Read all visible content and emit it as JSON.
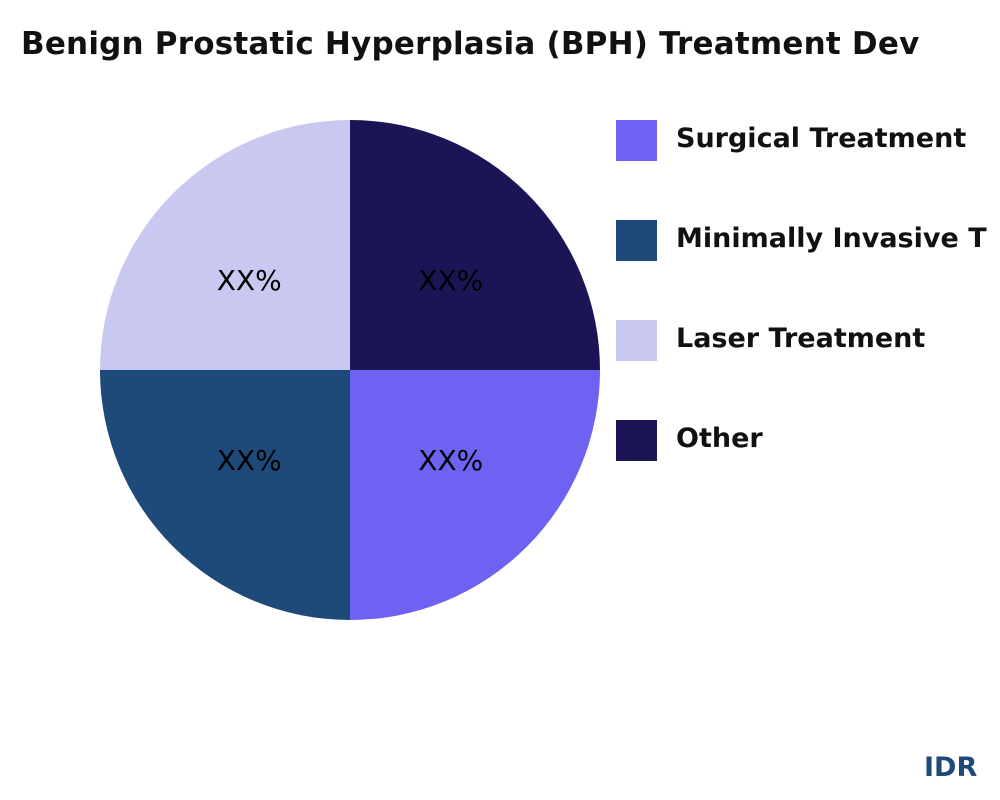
{
  "chart_data": {
    "type": "pie",
    "title": "Benign Prostatic Hyperplasia (BPH) Treatment Dev",
    "slices": [
      {
        "name": "Other",
        "value": 25,
        "label": "XX%",
        "color": "#1b1556"
      },
      {
        "name": "Surgical Treatment",
        "value": 25,
        "label": "XX%",
        "color": "#6f61f2"
      },
      {
        "name": "Minimally Invasive T",
        "value": 25,
        "label": "XX%",
        "color": "#1e4a7a"
      },
      {
        "name": "Laser Treatment",
        "value": 25,
        "label": "XX%",
        "color": "#c8c8f0"
      }
    ],
    "legend": {
      "placement": "right",
      "items": [
        {
          "label": "Surgical Treatment",
          "color": "#6f61f2"
        },
        {
          "label": "Minimally Invasive T",
          "color": "#1e4a7a"
        },
        {
          "label": "Laser Treatment",
          "color": "#c8c8f0"
        },
        {
          "label": "Other",
          "color": "#1b1556"
        }
      ]
    }
  },
  "brand": "IDR"
}
